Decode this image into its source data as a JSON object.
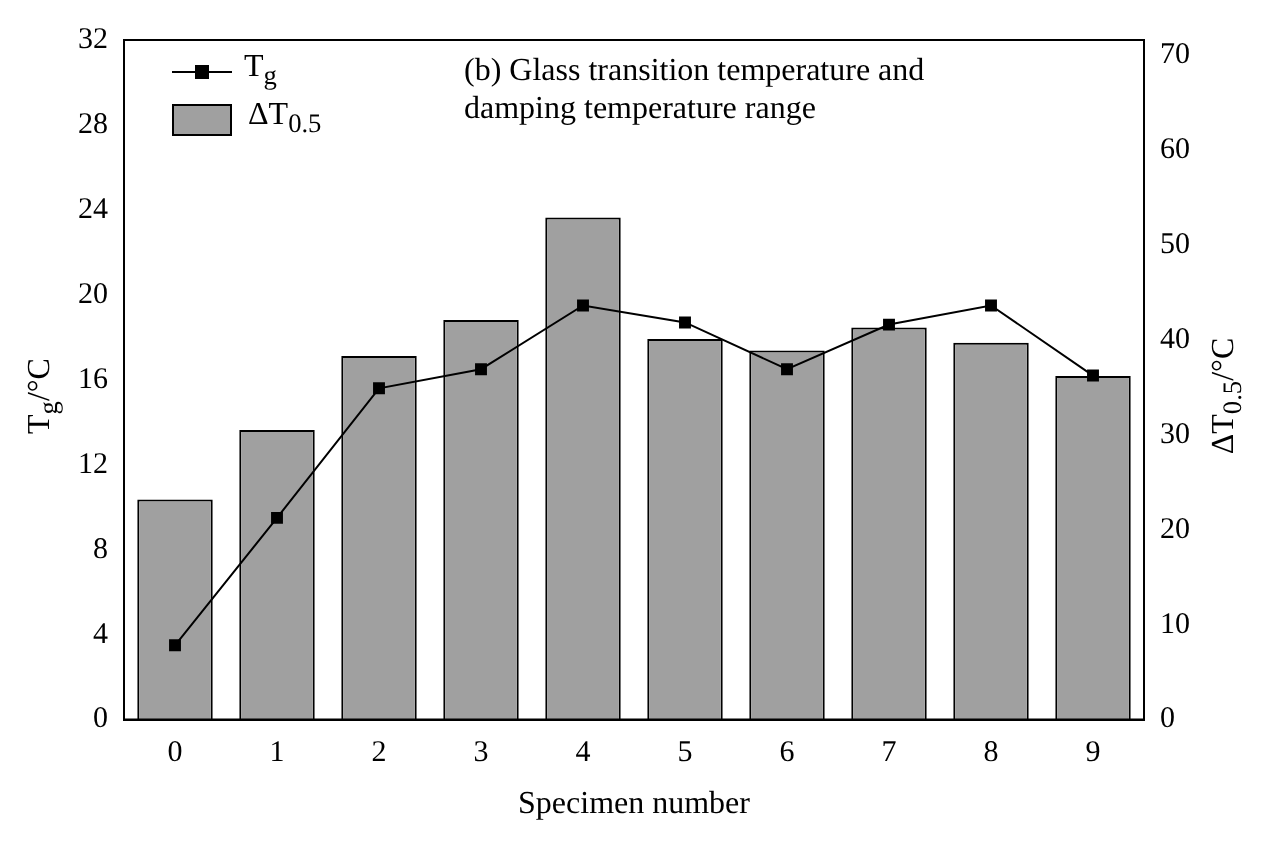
{
  "chart_data": {
    "type": "bar",
    "categories": [
      "0",
      "1",
      "2",
      "3",
      "4",
      "5",
      "6",
      "7",
      "8",
      "9"
    ],
    "series": [
      {
        "name": "T$_{g}$",
        "type": "line",
        "color": "#000000",
        "marker": "square",
        "values": [
          3.5,
          9.5,
          15.6,
          16.5,
          19.5,
          18.7,
          16.5,
          18.6,
          19.5,
          16.2
        ]
      },
      {
        "name": "ΔT$_{0.5}$",
        "axis": "y2",
        "color": "#a0a0a0",
        "values": [
          23.2,
          30.5,
          38.3,
          42.1,
          52.9,
          40.1,
          38.9,
          41.3,
          39.7,
          36.2
        ]
      }
    ],
    "xlabel": "Specimen number",
    "ylabel": "T$_{g}$/°C",
    "y2label": "ΔT$_{0.5}$/°C",
    "ylim": [
      0,
      32
    ],
    "yticks": [
      0,
      4,
      8,
      12,
      16,
      20,
      24,
      28,
      32
    ],
    "y2lim": [
      0,
      71.6
    ],
    "y2ticks": [
      0,
      10,
      20,
      30,
      40,
      50,
      60,
      70
    ],
    "annotations": [
      "(b) Glass transition temperature and damping temperature range"
    ],
    "legend": "top left",
    "grid": false
  }
}
